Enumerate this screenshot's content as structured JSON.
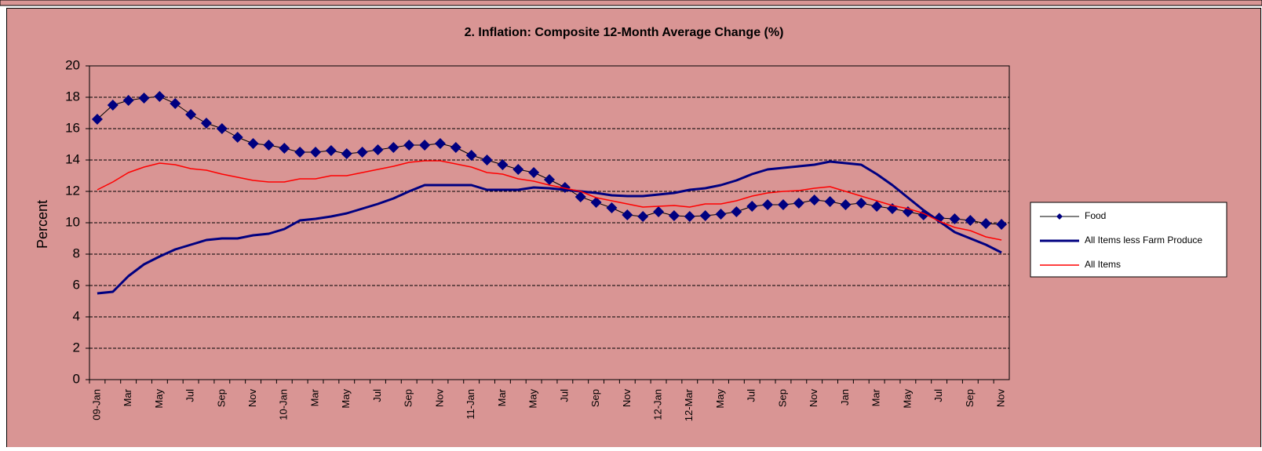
{
  "chart_data": {
    "type": "line",
    "title": "2. Inflation: Composite 12-Month Average Change (%)",
    "y_label": "Percent",
    "categories": [
      "09-Jan",
      null,
      "Mar",
      null,
      "May",
      null,
      "Jul",
      null,
      "Sep",
      null,
      "Nov",
      null,
      "10-Jan",
      null,
      "Mar",
      null,
      "May",
      null,
      "Jul",
      null,
      "Sep",
      null,
      "Nov",
      null,
      "11-Jan",
      null,
      "Mar",
      null,
      "May",
      null,
      "Jul",
      null,
      "Sep",
      null,
      "Nov",
      null,
      "12-Jan",
      null,
      "12-Mar",
      null,
      "May",
      null,
      "Jul",
      null,
      "Sep",
      null,
      "Nov",
      null,
      "Jan",
      null,
      "Mar",
      null,
      "May",
      null,
      "Jul",
      null,
      "Sep",
      null,
      "Nov"
    ],
    "series": [
      {
        "name": "Food",
        "color": "#000080",
        "line_color": "#000000",
        "marker": "diamond",
        "values": [
          16.6,
          17.5,
          17.8,
          17.95,
          18.05,
          17.6,
          16.9,
          16.35,
          16.0,
          15.45,
          15.05,
          14.95,
          14.75,
          14.5,
          14.5,
          14.6,
          14.4,
          14.5,
          14.65,
          14.8,
          14.95,
          14.95,
          15.05,
          14.8,
          14.3,
          14.0,
          13.7,
          13.4,
          13.2,
          12.75,
          12.25,
          11.65,
          11.3,
          10.95,
          10.5,
          10.4,
          10.7,
          10.45,
          10.4,
          10.45,
          10.55,
          10.7,
          11.05,
          11.15,
          11.15,
          11.25,
          11.45,
          11.35,
          11.15,
          11.25,
          11.05,
          10.9,
          10.7,
          10.5,
          10.3,
          10.25,
          10.15,
          9.95,
          9.9
        ]
      },
      {
        "name": "All Items less Farm Produce",
        "color": "#000080",
        "values": [
          5.5,
          5.6,
          6.6,
          7.35,
          7.85,
          8.3,
          8.6,
          8.9,
          9.0,
          9.0,
          9.2,
          9.3,
          9.6,
          10.15,
          10.25,
          10.4,
          10.6,
          10.9,
          11.2,
          11.55,
          12.0,
          12.4,
          12.4,
          12.4,
          12.4,
          12.1,
          12.1,
          12.1,
          12.25,
          12.2,
          12.1,
          12.0,
          11.9,
          11.75,
          11.7,
          11.7,
          11.8,
          11.9,
          12.1,
          12.2,
          12.4,
          12.7,
          13.1,
          13.4,
          13.5,
          13.6,
          13.7,
          13.9,
          13.8,
          13.7,
          13.1,
          12.4,
          11.6,
          10.8,
          10.1,
          9.4,
          9.0,
          8.6,
          8.1
        ]
      },
      {
        "name": "All Items",
        "color": "#ff0000",
        "values": [
          12.1,
          12.6,
          13.2,
          13.55,
          13.8,
          13.7,
          13.45,
          13.35,
          13.1,
          12.9,
          12.7,
          12.6,
          12.6,
          12.8,
          12.8,
          13.0,
          13.0,
          13.2,
          13.4,
          13.6,
          13.85,
          13.95,
          13.95,
          13.75,
          13.55,
          13.2,
          13.1,
          12.8,
          12.65,
          12.4,
          12.2,
          12.0,
          11.6,
          11.4,
          11.2,
          11.0,
          11.05,
          11.1,
          11.0,
          11.2,
          11.2,
          11.4,
          11.7,
          11.9,
          12.0,
          12.05,
          12.2,
          12.3,
          12.0,
          11.7,
          11.4,
          11.1,
          10.9,
          10.6,
          10.1,
          9.7,
          9.5,
          9.1,
          8.9
        ]
      }
    ],
    "ylim": [
      0,
      20
    ],
    "yticks": [
      0,
      2,
      4,
      6,
      8,
      10,
      12,
      14,
      16,
      18,
      20
    ],
    "grid": true,
    "legend": "right"
  }
}
